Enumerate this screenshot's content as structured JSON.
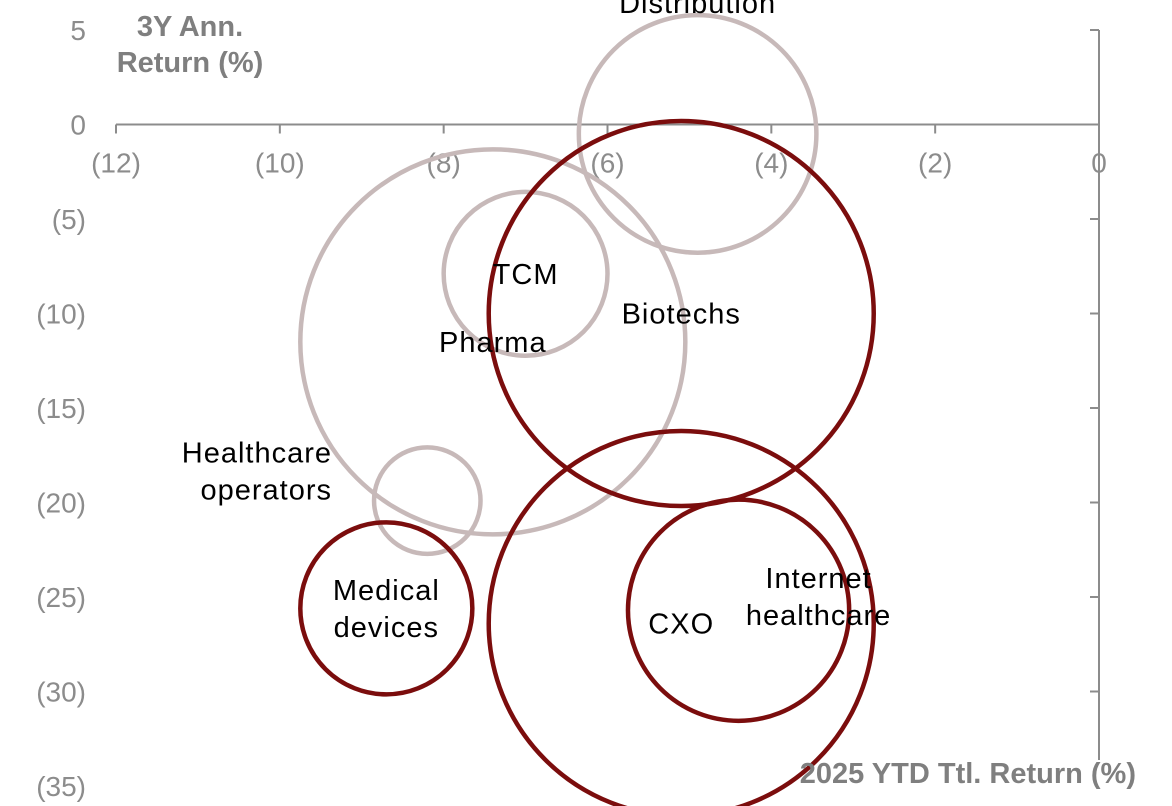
{
  "chart_data": {
    "type": "scatter",
    "variant": "bubble",
    "ylabel_lines": [
      "3Y Ann.",
      "Return (%)"
    ],
    "xlabel": "2025 YTD Ttl. Return (%)",
    "xlim": [
      -12,
      0
    ],
    "ylim": [
      -35,
      5
    ],
    "x_ticks": [
      {
        "value": -12,
        "label": "(12)"
      },
      {
        "value": -10,
        "label": "(10)"
      },
      {
        "value": -8,
        "label": "(8)"
      },
      {
        "value": -6,
        "label": "(6)"
      },
      {
        "value": -4,
        "label": "(4)"
      },
      {
        "value": -2,
        "label": "(2)"
      },
      {
        "value": 0,
        "label": "0"
      }
    ],
    "y_ticks": [
      {
        "value": 5,
        "label": "5"
      },
      {
        "value": 0,
        "label": "0"
      },
      {
        "value": -5,
        "label": "(5)"
      },
      {
        "value": -10,
        "label": "(10)"
      },
      {
        "value": -15,
        "label": "(15)"
      },
      {
        "value": -20,
        "label": "(20)"
      },
      {
        "value": -25,
        "label": "(25)"
      },
      {
        "value": -30,
        "label": "(30)"
      },
      {
        "value": -35,
        "label": "(35)"
      }
    ],
    "colors": {
      "dark": "#7b0d0d",
      "light": "#c7b9b9"
    },
    "points": [
      {
        "label": "Distribution",
        "label_lines": [
          "Distribution"
        ],
        "x": -4.9,
        "y": -0.5,
        "size": 2.9,
        "style": "light",
        "label_pos": "above"
      },
      {
        "label": "TCM",
        "label_lines": [
          "TCM"
        ],
        "x": -7.0,
        "y": -7.9,
        "size": 2.0,
        "style": "light",
        "label_pos": "center"
      },
      {
        "label": "Pharma",
        "label_lines": [
          "Pharma"
        ],
        "x": -7.4,
        "y": -11.5,
        "size": 4.7,
        "style": "light",
        "label_pos": "center"
      },
      {
        "label": "Biotechs",
        "label_lines": [
          "Biotechs"
        ],
        "x": -5.1,
        "y": -10.0,
        "size": 4.7,
        "style": "dark",
        "label_pos": "center"
      },
      {
        "label": "Healthcare operators",
        "label_lines": [
          "Healthcare",
          "operators"
        ],
        "x": -8.2,
        "y": -19.9,
        "size": 1.3,
        "style": "light",
        "label_pos": "left"
      },
      {
        "label": "Medical devices",
        "label_lines": [
          "Medical",
          "devices"
        ],
        "x": -8.7,
        "y": -25.6,
        "size": 2.1,
        "style": "dark",
        "label_pos": "center"
      },
      {
        "label": "CXO",
        "label_lines": [
          "CXO"
        ],
        "x": -5.1,
        "y": -26.4,
        "size": 4.7,
        "style": "dark",
        "label_pos": "center"
      },
      {
        "label": "Internet healthcare",
        "label_lines": [
          "Internet",
          "healthcare"
        ],
        "x": -4.4,
        "y": -25.7,
        "size": 2.7,
        "style": "dark",
        "label_pos": "right"
      }
    ]
  }
}
